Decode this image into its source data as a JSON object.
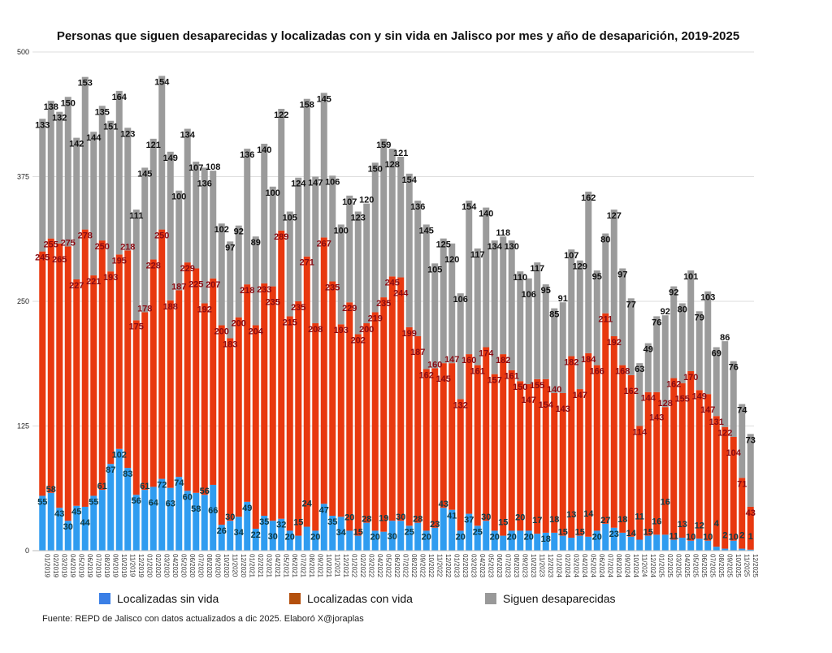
{
  "chart_data": {
    "type": "bar",
    "stacked": true,
    "title": "Personas que siguen desaparecidas y localizadas con y sin vida en Jalisco por mes y año de desaparición, 2019-2025",
    "xlabel": "",
    "ylabel": "",
    "ylim": [
      0,
      500
    ],
    "yticks": [
      0,
      125,
      250,
      375,
      500
    ],
    "grid": true,
    "legend_position": "bottom",
    "categories": [
      "01/2019",
      "02/2019",
      "03/2019",
      "04/2019",
      "05/2019",
      "06/2019",
      "07/2019",
      "08/2019",
      "09/2019",
      "10/2019",
      "11/2019",
      "12/2019",
      "01/2020",
      "02/2020",
      "03/2020",
      "04/2020",
      "05/2020",
      "06/2020",
      "07/2020",
      "08/2020",
      "09/2020",
      "10/2020",
      "11/2020",
      "12/2020",
      "01/2021",
      "02/2021",
      "03/2021",
      "04/2021",
      "05/2021",
      "06/2021",
      "07/2021",
      "08/2021",
      "09/2021",
      "10/2021",
      "11/2021",
      "12/2021",
      "01/2022",
      "02/2022",
      "03/2022",
      "04/2022",
      "05/2022",
      "06/2022",
      "07/2022",
      "08/2022",
      "09/2022",
      "10/2022",
      "11/2022",
      "12/2022",
      "01/2023",
      "02/2023",
      "03/2023",
      "04/2023",
      "05/2023",
      "06/2023",
      "07/2023",
      "08/2023",
      "09/2023",
      "10/2023",
      "11/2023",
      "12/2023",
      "01/2024",
      "02/2024",
      "03/2024",
      "04/2024",
      "05/2024",
      "06/2024",
      "07/2024",
      "08/2024",
      "09/2024",
      "10/2024",
      "11/2024",
      "12/2024",
      "01/2025",
      "02/2025",
      "03/2025",
      "04/2025",
      "05/2025",
      "06/2025",
      "07/2025",
      "08/2025",
      "09/2025",
      "10/2025",
      "11/2025",
      "12/2025"
    ],
    "series": [
      {
        "name": "Localizadas sin vida",
        "color": "#2f9cf0",
        "label_color": "#0d3b48",
        "legend_color": "#3a7fe6",
        "values": [
          55,
          58,
          43,
          30,
          45,
          44,
          55,
          61,
          87,
          102,
          83,
          56,
          61,
          64,
          72,
          63,
          74,
          60,
          58,
          56,
          66,
          26,
          30,
          34,
          49,
          22,
          35,
          30,
          32,
          20,
          15,
          24,
          20,
          47,
          35,
          34,
          20,
          15,
          28,
          20,
          19,
          30,
          30,
          25,
          28,
          20,
          23,
          43,
          41,
          20,
          37,
          25,
          30,
          20,
          15,
          20,
          20,
          20,
          17,
          18,
          18,
          15,
          13,
          15,
          14,
          20,
          27,
          23,
          18,
          14,
          11,
          15,
          16,
          16,
          11,
          13,
          10,
          12,
          10,
          4,
          2,
          10,
          2,
          1
        ]
      },
      {
        "name": "Localizadas con vida",
        "color": "#e8380f",
        "label_color": "#8a0a12",
        "legend_color": "#b4500c",
        "values": [
          245,
          255,
          265,
          275,
          227,
          278,
          221,
          250,
          193,
          195,
          218,
          175,
          178,
          228,
          250,
          188,
          187,
          229,
          225,
          192,
          207,
          200,
          183,
          200,
          218,
          204,
          233,
          235,
          289,
          215,
          235,
          271,
          208,
          267,
          235,
          193,
          229,
          202,
          200,
          219,
          235,
          245,
          244,
          199,
          187,
          162,
          160,
          145,
          147,
          132,
          160,
          161,
          174,
          157,
          182,
          161,
          150,
          147,
          155,
          154,
          140,
          143,
          182,
          147,
          184,
          166,
          211,
          192,
          168,
          162,
          114,
          144,
          143,
          128,
          162,
          155,
          170,
          149,
          147,
          131,
          122,
          104,
          71,
          43
        ]
      },
      {
        "name": "Siguen desaparecidas",
        "color": "#9b9b9b",
        "label_color": "#111111",
        "legend_color": "#999999",
        "values": [
          133,
          138,
          132,
          150,
          142,
          153,
          144,
          135,
          151,
          164,
          123,
          111,
          145,
          121,
          154,
          149,
          100,
          134,
          107,
          136,
          108,
          102,
          97,
          92,
          136,
          89,
          140,
          100,
          122,
          105,
          124,
          158,
          147,
          145,
          106,
          100,
          107,
          123,
          120,
          150,
          159,
          128,
          121,
          154,
          136,
          145,
          105,
          125,
          120,
          106,
          154,
          117,
          140,
          134,
          118,
          130,
          110,
          106,
          117,
          95,
          85,
          91,
          107,
          129,
          162,
          95,
          80,
          127,
          97,
          77,
          63,
          49,
          76,
          92,
          92,
          80,
          101,
          79,
          103,
          69,
          86,
          76,
          74,
          73
        ]
      }
    ]
  },
  "footer": "Fuente: REPD de Jalisco con datos actualizados a dic 2025. Elaboró X@joraplas"
}
